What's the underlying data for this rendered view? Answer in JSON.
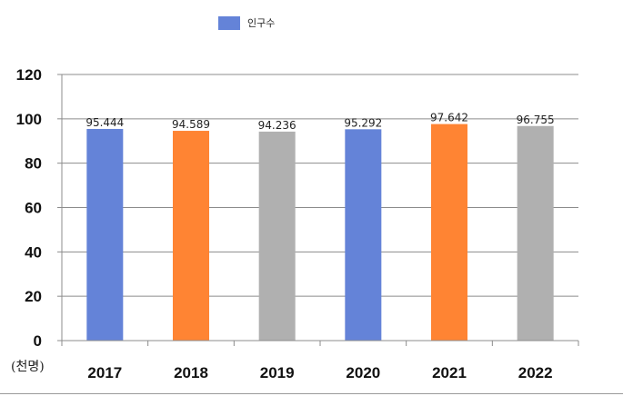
{
  "chart_data": {
    "type": "bar",
    "categories": [
      "2017",
      "2018",
      "2019",
      "2020",
      "2021",
      "2022"
    ],
    "series": [
      {
        "name": "인구수",
        "values": [
          95.444,
          94.589,
          94.236,
          95.292,
          97.642,
          96.755
        ]
      }
    ],
    "data_labels": [
      "95.444",
      "94.589",
      "94.236",
      "95.292",
      "97.642",
      "96.755"
    ],
    "bar_colors": [
      "#6483d8",
      "#ff8433",
      "#b0b0b0",
      "#6483d8",
      "#ff8433",
      "#b0b0b0"
    ],
    "legend_color": "#6483d8",
    "ylim": [
      0,
      120
    ],
    "yticks": [
      0,
      20,
      40,
      60,
      80,
      100,
      120
    ],
    "grid": true,
    "legend_position": "top",
    "unit_label": "(천명)"
  }
}
